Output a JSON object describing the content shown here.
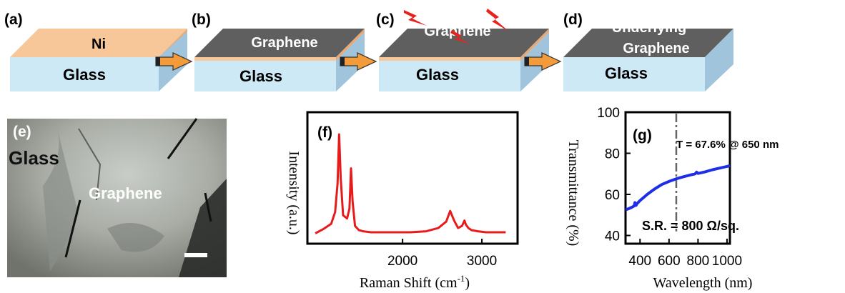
{
  "panels": {
    "a": {
      "label": "(a)",
      "top_text": "Ni",
      "bottom_text": "Glass"
    },
    "b": {
      "label": "(b)",
      "top_text": "Graphene",
      "bottom_text": "Glass"
    },
    "c": {
      "label": "(c)",
      "top_text": "Graphene",
      "bottom_text": "Glass"
    },
    "d": {
      "label": "(d)",
      "top_text_line1": "Underlying",
      "top_text_line2": "Graphene",
      "bottom_text": "Glass"
    },
    "e": {
      "label": "(e)",
      "glass_text": "Glass",
      "graphene_text": "Graphene"
    }
  },
  "colors": {
    "ni_top": "#f7c79a",
    "ni_side": "#e8a978",
    "graphene_top": "#5f5f5f",
    "glass_front": "#cde9f6",
    "glass_side": "#9fc4dc",
    "arrow": "#f39a3a",
    "lightning": "#e8231e",
    "raman_line": "#e81b1b",
    "transmittance_line": "#1d2ee6"
  },
  "chart_data": [
    {
      "panel_label": "(f)",
      "type": "line",
      "xlabel": "Raman Shift (cm",
      "xlabel_sup": "-1",
      "xlabel_close": ")",
      "ylabel": "Intensity (a.u.)",
      "xlim": [
        800,
        3450
      ],
      "ylim": [
        0,
        1
      ],
      "xticks": [
        "2000",
        "3000"
      ],
      "xtick_values": [
        2000,
        3000
      ],
      "series": [
        {
          "x": [
            900,
            1000,
            1100,
            1150,
            1180,
            1200,
            1220,
            1250,
            1300,
            1330,
            1350,
            1370,
            1400,
            1450,
            1500,
            1600,
            1700,
            1900,
            2100,
            2300,
            2450,
            2550,
            2600,
            2650,
            2700,
            2750,
            2780,
            2800,
            2830,
            2870,
            2950,
            3050,
            3150,
            3300
          ],
          "y": [
            0.03,
            0.07,
            0.12,
            0.23,
            0.5,
            0.96,
            0.55,
            0.2,
            0.17,
            0.26,
            0.64,
            0.33,
            0.1,
            0.06,
            0.05,
            0.04,
            0.04,
            0.04,
            0.04,
            0.05,
            0.08,
            0.14,
            0.24,
            0.15,
            0.08,
            0.1,
            0.15,
            0.11,
            0.08,
            0.06,
            0.05,
            0.04,
            0.04,
            0.04
          ]
        }
      ]
    },
    {
      "panel_label": "(g)",
      "type": "line",
      "xlabel": "Wavelength (nm)",
      "ylabel": "Transmittance (%)",
      "xlim": [
        300,
        1020
      ],
      "ylim": [
        36,
        100
      ],
      "xticks": [
        "400",
        "600",
        "800",
        "1000"
      ],
      "xtick_values": [
        400,
        600,
        800,
        1000
      ],
      "yticks": [
        "40",
        "60",
        "80",
        "100"
      ],
      "ytick_values": [
        40,
        60,
        80,
        100
      ],
      "annotation_wavelength": 650,
      "annotation_text": "T = 67.6% @ 650 nm",
      "sr_text": "S.R. = 800 Ω/sq.",
      "series": [
        {
          "x": [
            300,
            320,
            340,
            360,
            365,
            372,
            380,
            400,
            450,
            500,
            550,
            600,
            650,
            700,
            750,
            780,
            790,
            800,
            850,
            900,
            950,
            1000,
            1020
          ],
          "y": [
            52.5,
            53.0,
            53.6,
            54.4,
            56.0,
            54.6,
            55.5,
            57.0,
            60.0,
            62.6,
            64.8,
            66.3,
            67.6,
            68.6,
            69.5,
            70.0,
            70.8,
            70.2,
            71.0,
            72.0,
            72.8,
            73.6,
            74.0
          ]
        }
      ]
    }
  ]
}
